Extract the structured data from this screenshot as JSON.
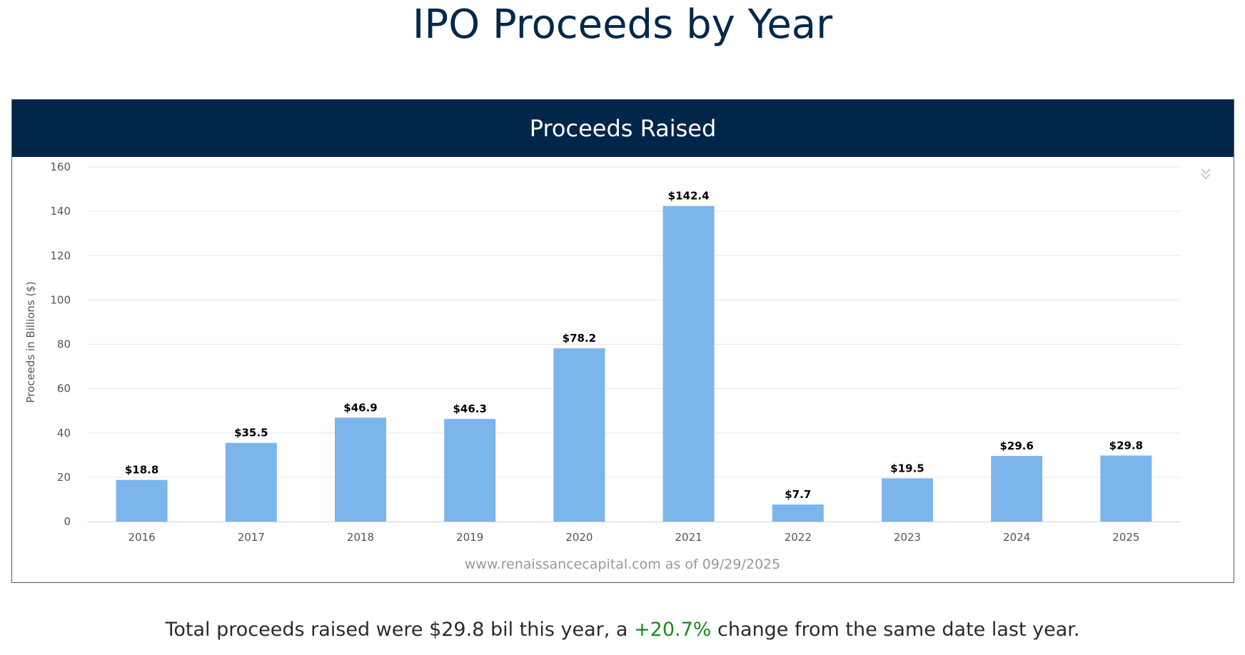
{
  "page": {
    "title": "IPO Proceeds by Year"
  },
  "panel": {
    "header_title": "Proceeds Raised",
    "source_note": "www.renaissancecapital.com as of 09/29/2025",
    "menu_icon": "double-chevron-down-icon"
  },
  "summary": {
    "prefix": "Total proceeds raised were $29.8 bil this year, a ",
    "change": "+20.7%",
    "suffix": " change from the same date last year."
  },
  "colors": {
    "bar": "#7cb5ec",
    "header_bg": "#00264a",
    "title": "#04284a",
    "positive": "#1a8a1a",
    "grid": "#e6e6e6",
    "axis_text": "#555555"
  },
  "chart_data": {
    "type": "bar",
    "title": "Proceeds Raised",
    "xlabel": "",
    "ylabel": "Proceeds in Billions ($)",
    "ylim": [
      0,
      160
    ],
    "yticks": [
      0,
      20,
      40,
      60,
      80,
      100,
      120,
      140,
      160
    ],
    "grid": true,
    "legend": "none",
    "categories": [
      "2016",
      "2017",
      "2018",
      "2019",
      "2020",
      "2021",
      "2022",
      "2023",
      "2024",
      "2025"
    ],
    "values": [
      18.8,
      35.5,
      46.9,
      46.3,
      78.2,
      142.4,
      7.7,
      19.5,
      29.6,
      29.8
    ],
    "data_labels": [
      "$18.8",
      "$35.5",
      "$46.9",
      "$46.3",
      "$78.2",
      "$142.4",
      "$7.7",
      "$19.5",
      "$29.6",
      "$29.8"
    ]
  }
}
